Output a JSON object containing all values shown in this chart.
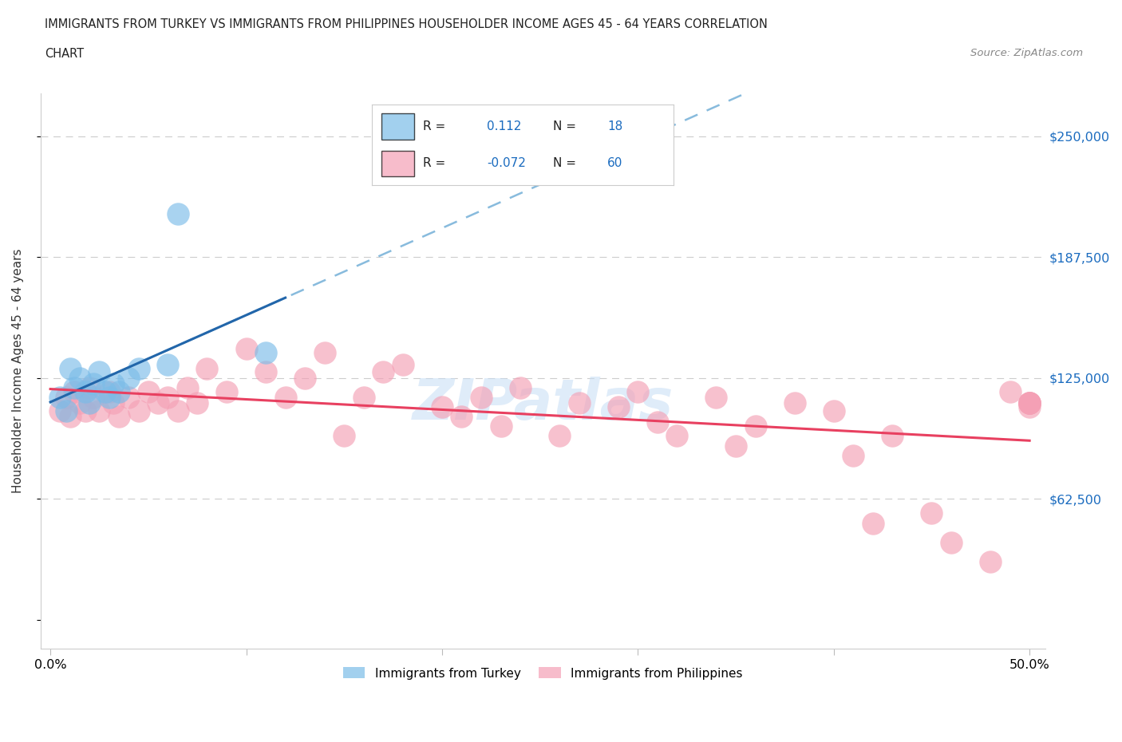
{
  "title_line1": "IMMIGRANTS FROM TURKEY VS IMMIGRANTS FROM PHILIPPINES HOUSEHOLDER INCOME AGES 45 - 64 YEARS CORRELATION",
  "title_line2": "CHART",
  "source": "Source: ZipAtlas.com",
  "ylabel": "Householder Income Ages 45 - 64 years",
  "turkey_color": "#7bbce8",
  "turkey_line_color": "#2266aa",
  "philippines_color": "#f4a0b5",
  "philippines_line_color": "#e84060",
  "dashed_color": "#88bbdd",
  "legend_R_turkey": "0.112",
  "legend_N_turkey": "18",
  "legend_R_philippines": "-0.072",
  "legend_N_philippines": "60",
  "watermark": "ZIPatlas",
  "ytick_vals": [
    0,
    62500,
    125000,
    187500,
    250000
  ],
  "ytick_labels": [
    "",
    "$62,500",
    "$125,000",
    "$187,500",
    "$250,000"
  ],
  "turkey_x": [
    0.005,
    0.008,
    0.01,
    0.012,
    0.015,
    0.018,
    0.02,
    0.022,
    0.025,
    0.028,
    0.03,
    0.032,
    0.035,
    0.04,
    0.045,
    0.06,
    0.065,
    0.11
  ],
  "turkey_y": [
    115000,
    108000,
    130000,
    120000,
    125000,
    118000,
    112000,
    122000,
    128000,
    118000,
    115000,
    122000,
    118000,
    125000,
    130000,
    132000,
    210000,
    138000
  ],
  "philippines_x": [
    0.005,
    0.008,
    0.01,
    0.012,
    0.015,
    0.018,
    0.02,
    0.022,
    0.025,
    0.03,
    0.032,
    0.035,
    0.04,
    0.045,
    0.05,
    0.055,
    0.06,
    0.065,
    0.07,
    0.075,
    0.08,
    0.09,
    0.1,
    0.11,
    0.12,
    0.13,
    0.14,
    0.15,
    0.16,
    0.17,
    0.18,
    0.2,
    0.21,
    0.22,
    0.23,
    0.24,
    0.26,
    0.27,
    0.29,
    0.3,
    0.31,
    0.32,
    0.34,
    0.35,
    0.36,
    0.38,
    0.4,
    0.41,
    0.42,
    0.43,
    0.45,
    0.46,
    0.48,
    0.49,
    0.5,
    0.5,
    0.5,
    0.5,
    0.5,
    0.5
  ],
  "philippines_y": [
    108000,
    115000,
    105000,
    118000,
    112000,
    108000,
    120000,
    115000,
    108000,
    118000,
    112000,
    105000,
    115000,
    108000,
    118000,
    112000,
    115000,
    108000,
    120000,
    112000,
    130000,
    118000,
    140000,
    128000,
    115000,
    125000,
    138000,
    95000,
    115000,
    128000,
    132000,
    110000,
    105000,
    115000,
    100000,
    120000,
    95000,
    112000,
    110000,
    118000,
    102000,
    95000,
    115000,
    90000,
    100000,
    112000,
    108000,
    85000,
    50000,
    95000,
    55000,
    40000,
    30000,
    118000,
    112000,
    112000,
    112000,
    112000,
    112000,
    110000
  ]
}
